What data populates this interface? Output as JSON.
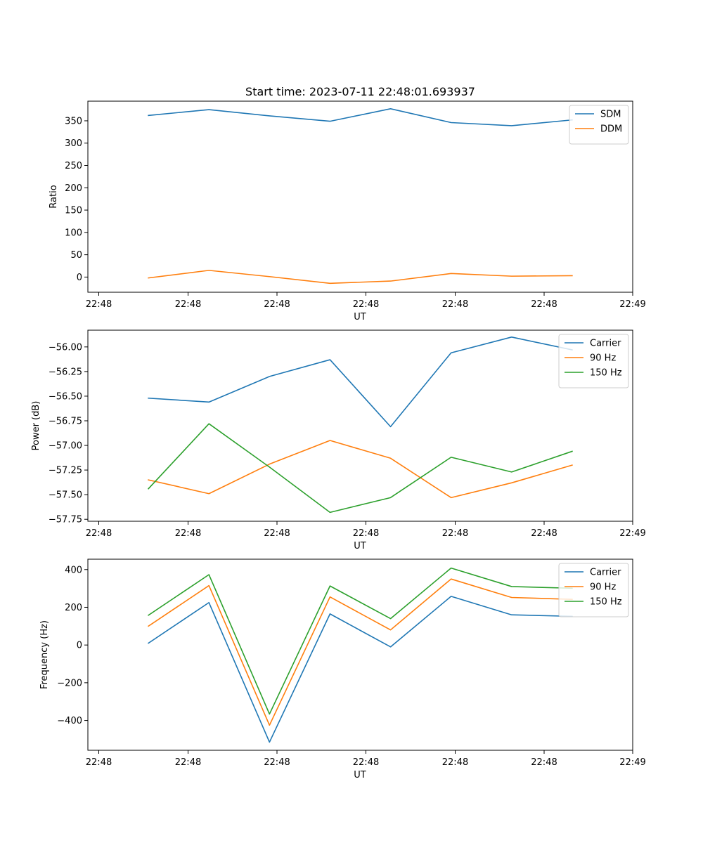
{
  "chart_data": [
    {
      "type": "line",
      "title": "Start time: 2023-07-11 22:48:01.693937",
      "xlabel": "UT",
      "ylabel": "Ratio",
      "x_ticks": [
        "22:48",
        "22:48",
        "22:48",
        "22:48",
        "22:48",
        "22:48",
        "22:49"
      ],
      "x": [
        1,
        2,
        3,
        4,
        5,
        6,
        7,
        8
      ],
      "xlim": [
        0,
        9
      ],
      "ylim": [
        -34,
        394
      ],
      "y_ticks": [
        0,
        50,
        100,
        150,
        200,
        250,
        300,
        350
      ],
      "y_tick_labels": [
        "0",
        "50",
        "100",
        "150",
        "200",
        "250",
        "300",
        "350"
      ],
      "legend": "top-right",
      "series": [
        {
          "name": "SDM",
          "color": "#1f77b4",
          "values": [
            362,
            375,
            361,
            349,
            377,
            346,
            339,
            352
          ]
        },
        {
          "name": "DDM",
          "color": "#ff7f0e",
          "values": [
            -2,
            15,
            1,
            -14,
            -9,
            8,
            2,
            3
          ]
        }
      ]
    },
    {
      "type": "line",
      "title": "",
      "xlabel": "UT",
      "ylabel": "Power (dB)",
      "x_ticks": [
        "22:48",
        "22:48",
        "22:48",
        "22:48",
        "22:48",
        "22:48",
        "22:49"
      ],
      "x": [
        1,
        2,
        3,
        4,
        5,
        6,
        7,
        8
      ],
      "xlim": [
        0,
        9
      ],
      "ylim": [
        -57.77,
        -55.83
      ],
      "y_ticks": [
        -57.75,
        -57.5,
        -57.25,
        -57.0,
        -56.75,
        -56.5,
        -56.25,
        -56.0
      ],
      "y_tick_labels": [
        "−57.75",
        "−57.50",
        "−57.25",
        "−57.00",
        "−56.75",
        "−56.50",
        "−56.25",
        "−56.00"
      ],
      "legend": "top-right",
      "series": [
        {
          "name": "Carrier",
          "color": "#1f77b4",
          "values": [
            -56.52,
            -56.56,
            -56.3,
            -56.13,
            -56.81,
            -56.06,
            -55.9,
            -56.03
          ]
        },
        {
          "name": "90 Hz",
          "color": "#ff7f0e",
          "values": [
            -57.35,
            -57.49,
            -57.19,
            -56.95,
            -57.13,
            -57.53,
            -57.38,
            -57.2
          ]
        },
        {
          "name": "150 Hz",
          "color": "#2ca02c",
          "values": [
            -57.44,
            -56.78,
            -57.22,
            -57.68,
            -57.53,
            -57.12,
            -57.27,
            -57.06
          ]
        }
      ]
    },
    {
      "type": "line",
      "title": "",
      "xlabel": "UT",
      "ylabel": "Frequency (Hz)",
      "x_ticks": [
        "22:48",
        "22:48",
        "22:48",
        "22:48",
        "22:48",
        "22:48",
        "22:49"
      ],
      "x": [
        1,
        2,
        3,
        4,
        5,
        6,
        7,
        8
      ],
      "xlim": [
        0,
        9
      ],
      "ylim": [
        -558,
        455
      ],
      "y_ticks": [
        -400,
        -200,
        0,
        200,
        400
      ],
      "y_tick_labels": [
        "−400",
        "−200",
        "0",
        "200",
        "400"
      ],
      "legend": "top-right",
      "series": [
        {
          "name": "Carrier",
          "color": "#1f77b4",
          "values": [
            10,
            225,
            -515,
            165,
            -10,
            258,
            160,
            152
          ]
        },
        {
          "name": "90 Hz",
          "color": "#ff7f0e",
          "values": [
            100,
            315,
            -425,
            255,
            80,
            350,
            252,
            242
          ]
        },
        {
          "name": "150 Hz",
          "color": "#2ca02c",
          "values": [
            158,
            373,
            -366,
            313,
            140,
            408,
            310,
            301
          ]
        }
      ]
    }
  ]
}
